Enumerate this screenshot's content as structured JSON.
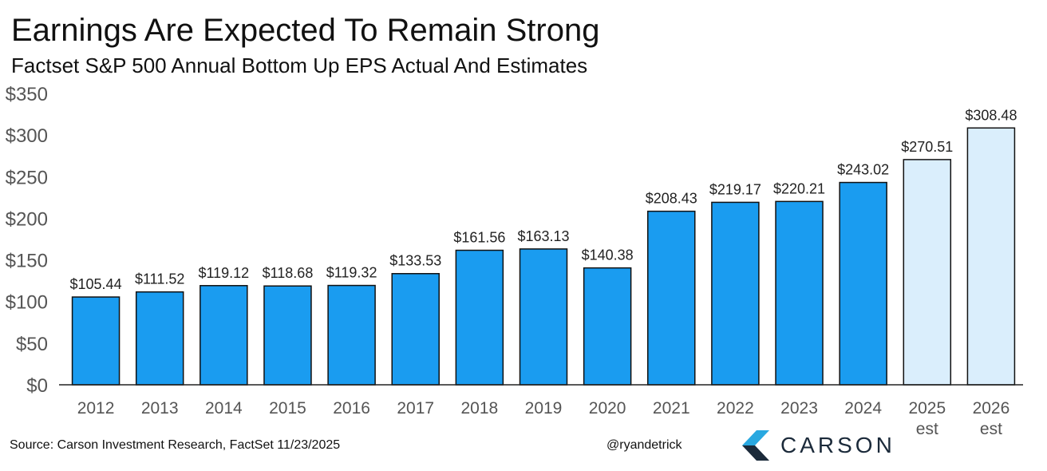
{
  "header": {
    "title": "Earnings Are Expected To Remain Strong",
    "subtitle": "Factset S&P 500 Annual Bottom Up EPS Actual And Estimates"
  },
  "footer": {
    "source": "Source: Carson Investment Research, FactSet 11/23/2025",
    "handle": "@ryandetrick",
    "logo_text": "CARSON"
  },
  "colors": {
    "actual_bar": "#1a9cf0",
    "estimate_bar": "#daeefc",
    "bar_outline": "#111111",
    "logo_dark": "#1b2a3a",
    "logo_accent": "#29a8e0"
  },
  "chart_data": {
    "type": "bar",
    "title": "Earnings Are Expected To Remain Strong",
    "subtitle": "Factset S&P 500 Annual Bottom Up EPS Actual And Estimates",
    "xlabel": "",
    "ylabel": "",
    "ylim": [
      0,
      350
    ],
    "yticks": [
      0,
      50,
      100,
      150,
      200,
      250,
      300,
      350
    ],
    "ytick_labels": [
      "$0",
      "$50",
      "$100",
      "$150",
      "$200",
      "$250",
      "$300",
      "$350"
    ],
    "grid": false,
    "legend": "none",
    "categories": [
      [
        "2012"
      ],
      [
        "2013"
      ],
      [
        "2014"
      ],
      [
        "2015"
      ],
      [
        "2016"
      ],
      [
        "2017"
      ],
      [
        "2018"
      ],
      [
        "2019"
      ],
      [
        "2020"
      ],
      [
        "2021"
      ],
      [
        "2022"
      ],
      [
        "2023"
      ],
      [
        "2024"
      ],
      [
        "2025",
        "est"
      ],
      [
        "2026",
        "est"
      ]
    ],
    "values": [
      105.44,
      111.52,
      119.12,
      118.68,
      119.32,
      133.53,
      161.56,
      163.13,
      140.38,
      208.43,
      219.17,
      220.21,
      243.02,
      270.51,
      308.48
    ],
    "value_labels": [
      "$105.44",
      "$111.52",
      "$119.12",
      "$118.68",
      "$119.32",
      "$133.53",
      "$161.56",
      "$163.13",
      "$140.38",
      "$208.43",
      "$219.17",
      "$220.21",
      "$243.02",
      "$270.51",
      "$308.48"
    ],
    "estimate": [
      false,
      false,
      false,
      false,
      false,
      false,
      false,
      false,
      false,
      false,
      false,
      false,
      false,
      true,
      true
    ]
  }
}
